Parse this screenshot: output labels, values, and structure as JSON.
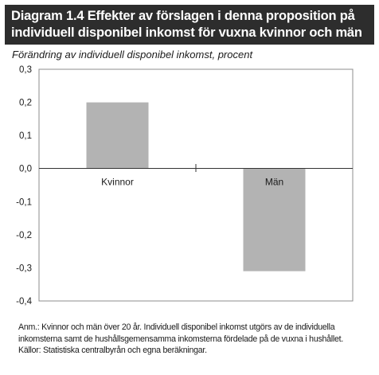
{
  "figure": {
    "title_line1": "Diagram 1.4 Effekter av förslagen i denna proposition på",
    "title_line2": "individuell disponibel inkomst för vuxna kvinnor och män",
    "subtitle": "Förändring av individuell disponibel inkomst, procent",
    "note_line1": "Anm.: Kvinnor och män över 20 år. Individuell disponibel inkomst utgörs av de individuella",
    "note_line2": "inkomsterna samt de hushållsgemensamma inkomsterna fördelade på de vuxna i hushållet.",
    "note_line3": "Källor: Statistiska centralbyrån och egna beräkningar."
  },
  "chart_data": {
    "type": "bar",
    "categories": [
      "Kvinnor",
      "Män"
    ],
    "values": [
      0.2,
      -0.31
    ],
    "ylim": [
      -0.4,
      0.3
    ],
    "yticks": [
      "0,3",
      "0,2",
      "0,1",
      "0,0",
      "-0,1",
      "-0,2",
      "-0,3",
      "-0,4"
    ],
    "ytick_values": [
      0.3,
      0.2,
      0.1,
      0.0,
      -0.1,
      -0.2,
      -0.3,
      -0.4
    ],
    "bar_color": "#b3b3b3",
    "grid": false
  }
}
